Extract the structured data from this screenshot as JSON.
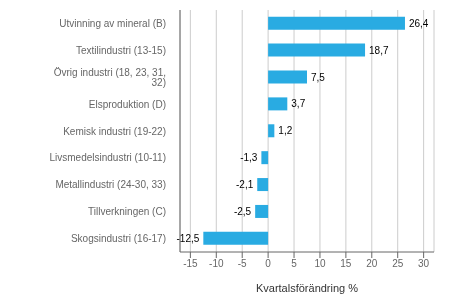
{
  "chart_data": {
    "type": "bar",
    "orientation": "horizontal",
    "xlabel": "Kvartalsförändring %",
    "categories": [
      "Skogsindustri (16-17)",
      "Tillverkningen (C)",
      "Metallindustri (24-30, 33)",
      "Livsmedelsindustri (10-11)",
      "Kemisk industri (19-22)",
      "Elsproduktion (D)",
      "Övrig industri (18, 23, 31, 32)",
      "Textilindustri (13-15)",
      "Utvinning av mineral (B)"
    ],
    "values": [
      -12.5,
      -2.5,
      -2.1,
      -1.3,
      1.2,
      3.7,
      7.5,
      18.7,
      26.4
    ],
    "value_labels": [
      "-12,5",
      "-2,5",
      "-2,1",
      "-1,3",
      "1,2",
      "3,7",
      "7,5",
      "18,7",
      "26,4"
    ],
    "data_labels": true,
    "color": "#29abe2",
    "xlim": [
      -17,
      32
    ],
    "xticks": [
      -15,
      -10,
      -5,
      0,
      5,
      10,
      15,
      20,
      25,
      30
    ],
    "grid": true
  }
}
